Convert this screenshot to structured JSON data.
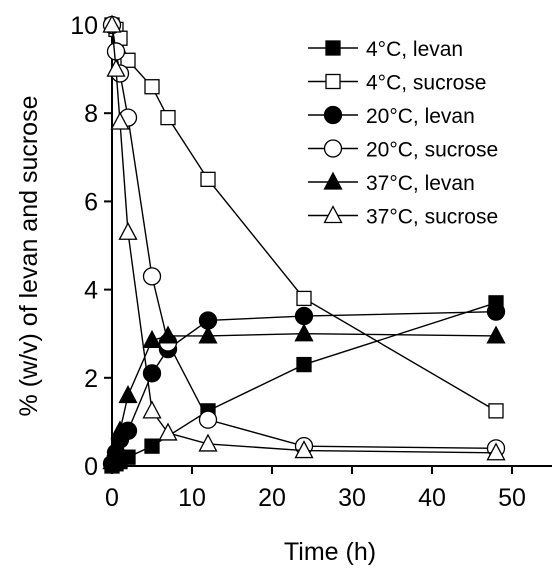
{
  "chart_data": {
    "type": "line",
    "title": "",
    "xlabel": "Time (h)",
    "ylabel": "% (w/v) of levan and sucrose",
    "xlim": [
      0,
      55
    ],
    "ylim": [
      0,
      10
    ],
    "xticks": [
      "0",
      "10",
      "20",
      "30",
      "40",
      "50"
    ],
    "yticks": [
      "0",
      "2",
      "4",
      "6",
      "8",
      "10"
    ],
    "grid": false,
    "legend_position": "top-right",
    "series": [
      {
        "name": "4°C, levan",
        "marker": "square",
        "fill": "#000000",
        "x": [
          0,
          0.5,
          1,
          2,
          5,
          12,
          24,
          48
        ],
        "y": [
          0.0,
          0.05,
          0.1,
          0.2,
          0.45,
          1.25,
          2.3,
          3.7
        ]
      },
      {
        "name": "4°C, sucrose",
        "marker": "square",
        "fill": "#ffffff",
        "x": [
          0,
          0.5,
          1,
          2,
          5,
          7,
          12,
          24,
          48
        ],
        "y": [
          10.0,
          9.9,
          9.7,
          9.2,
          8.6,
          7.9,
          6.5,
          3.8,
          1.25
        ]
      },
      {
        "name": "20°C, levan",
        "marker": "circle",
        "fill": "#000000",
        "x": [
          0,
          0.5,
          1,
          2,
          5,
          7,
          12,
          24,
          48
        ],
        "y": [
          0.05,
          0.3,
          0.6,
          0.8,
          2.1,
          2.65,
          3.3,
          3.4,
          3.5
        ]
      },
      {
        "name": "20°C, sucrose",
        "marker": "circle",
        "fill": "#ffffff",
        "x": [
          0,
          0.5,
          1,
          2,
          5,
          7,
          12,
          24,
          48
        ],
        "y": [
          10.0,
          9.4,
          8.9,
          7.9,
          4.3,
          2.8,
          1.05,
          0.45,
          0.4
        ]
      },
      {
        "name": "37°C, levan",
        "marker": "triangle",
        "fill": "#000000",
        "x": [
          0,
          0.5,
          1,
          2,
          5,
          7,
          12,
          24,
          48
        ],
        "y": [
          0.1,
          0.4,
          0.8,
          1.6,
          2.85,
          2.95,
          2.95,
          3.0,
          2.95
        ]
      },
      {
        "name": "37°C, sucrose",
        "marker": "triangle",
        "fill": "#ffffff",
        "x": [
          0,
          0.5,
          1,
          2,
          5,
          7,
          12,
          24,
          48
        ],
        "y": [
          10.0,
          9.0,
          7.8,
          5.3,
          1.25,
          0.75,
          0.5,
          0.35,
          0.3
        ]
      }
    ]
  }
}
